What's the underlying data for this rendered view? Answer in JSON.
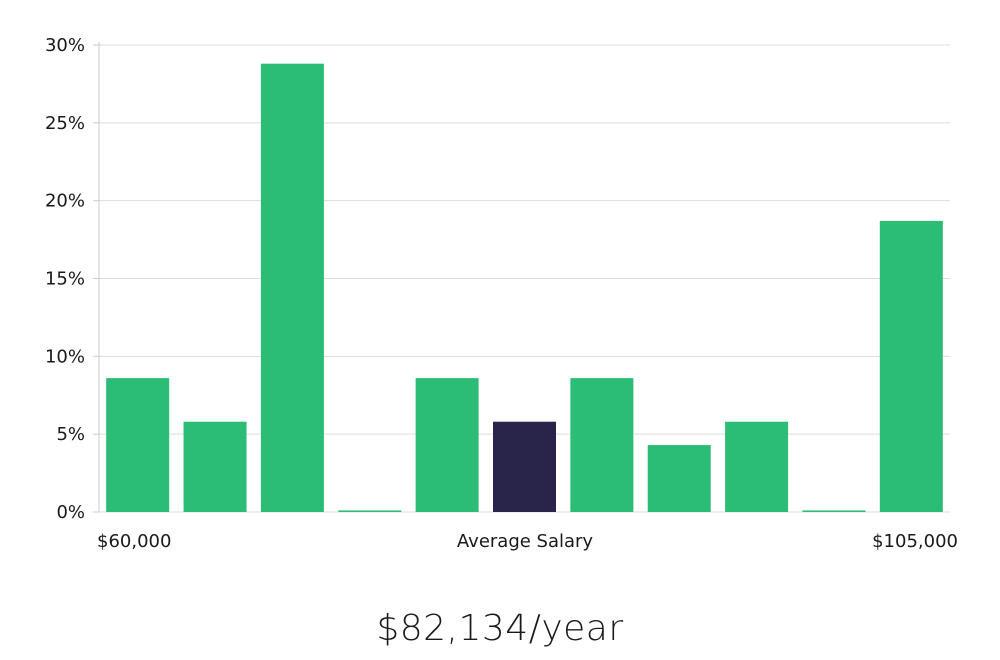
{
  "chart_data": {
    "type": "bar",
    "categories": [
      "1",
      "2",
      "3",
      "4",
      "5",
      "6",
      "7",
      "8",
      "9",
      "10",
      "11"
    ],
    "values": [
      8.6,
      5.8,
      28.8,
      0.1,
      8.6,
      5.8,
      8.6,
      4.3,
      5.8,
      0.1,
      18.7
    ],
    "highlight_index": 5,
    "ylim": [
      0,
      30
    ],
    "yticks": [
      0,
      5,
      10,
      15,
      20,
      25,
      30
    ],
    "ytick_suffix": "%",
    "x_labels": {
      "left": "$60,000",
      "center": "Average Salary",
      "right": "$105,000"
    },
    "grid": true,
    "colors": {
      "bar": "#2bbd76",
      "bar_highlight": "#28244a",
      "grid": "#dddddd",
      "axis": "#cccccc"
    }
  },
  "summary": {
    "salary": "$82,134/year"
  }
}
